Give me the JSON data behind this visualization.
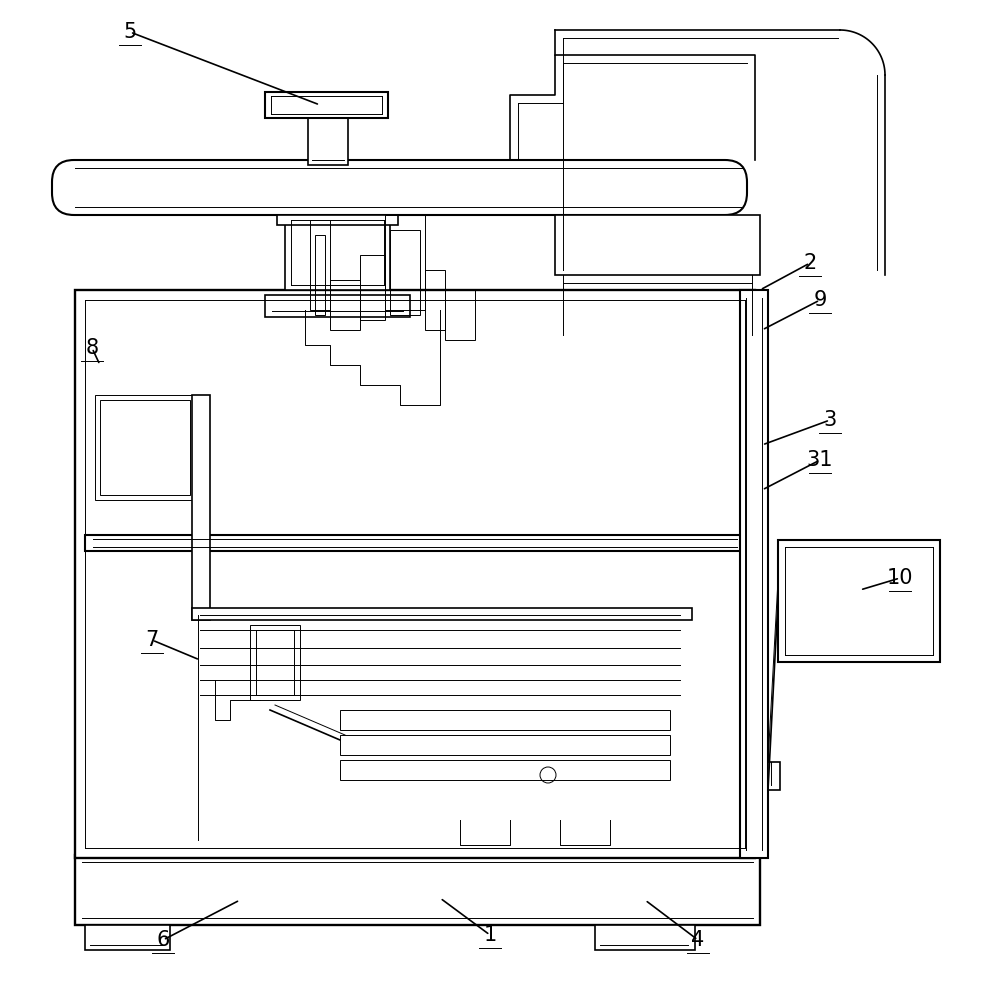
{
  "bg_color": "#ffffff",
  "line_color": "#000000",
  "line_width": 1.2,
  "thin_line": 0.7,
  "figsize": [
    10.0,
    9.88
  ]
}
